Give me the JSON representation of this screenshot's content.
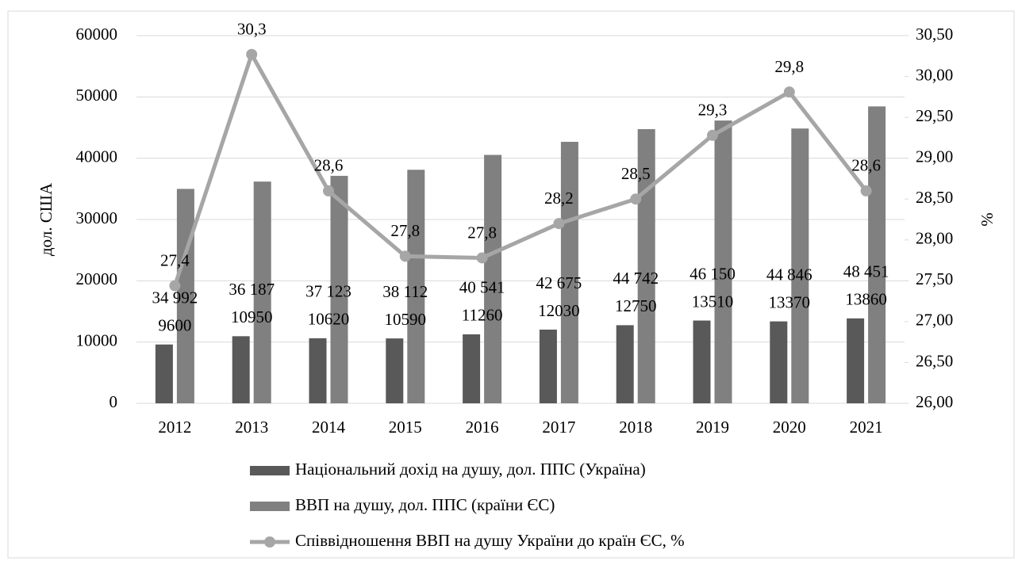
{
  "chart_data": {
    "type": "bar",
    "categories": [
      "2012",
      "2013",
      "2014",
      "2015",
      "2016",
      "2017",
      "2018",
      "2019",
      "2020",
      "2021"
    ],
    "ylabel": "дол. США",
    "y2label": "%",
    "ylim": [
      0,
      60000
    ],
    "yticks": [
      0,
      10000,
      20000,
      30000,
      40000,
      50000,
      60000
    ],
    "y2lim": [
      26,
      30.5
    ],
    "y2ticks": [
      {
        "value": 26,
        "label": "26,00"
      },
      {
        "value": 26.5,
        "label": "26,50"
      },
      {
        "value": 27,
        "label": "27,00"
      },
      {
        "value": 27.5,
        "label": "27,50"
      },
      {
        "value": 28,
        "label": "28,00"
      },
      {
        "value": 28.5,
        "label": "28,50"
      },
      {
        "value": 29,
        "label": "29,00"
      },
      {
        "value": 29.5,
        "label": "29,50"
      },
      {
        "value": 30,
        "label": "30,00"
      },
      {
        "value": 30.5,
        "label": "30,50"
      }
    ],
    "grid": true,
    "legend": "bottom",
    "series": [
      {
        "name": "Національний дохід на душу,  дол. ППС (Україна)",
        "color": "#595959",
        "type": "bar",
        "values": [
          9600,
          10950,
          10620,
          10590,
          11260,
          12030,
          12750,
          13510,
          13370,
          13860
        ]
      },
      {
        "name": "ВВП на душу,  дол. ППС (країни ЄС)",
        "color": "#808080",
        "type": "bar",
        "values": [
          34992,
          36187,
          37123,
          38112,
          40541,
          42675,
          44742,
          46150,
          44846,
          48451
        ],
        "value_labels": [
          "34 992",
          "36 187",
          "37 123",
          "38 112",
          "40 541",
          "42 675",
          "44 742",
          "46 150",
          "44 846",
          "48 451"
        ]
      },
      {
        "name": "Співвідношення ВВП на душу  України до країн ЄС, %",
        "color": "#a6a6a6",
        "type": "line",
        "axis": "y2",
        "values": [
          27.44,
          30.27,
          28.6,
          27.8,
          27.78,
          28.2,
          28.5,
          29.28,
          29.81,
          28.6
        ],
        "value_labels": [
          "27,4",
          "30,3",
          "28,6",
          "27,8",
          "27,8",
          "28,2",
          "28,5",
          "29,3",
          "29,8",
          "28,6"
        ]
      }
    ]
  }
}
